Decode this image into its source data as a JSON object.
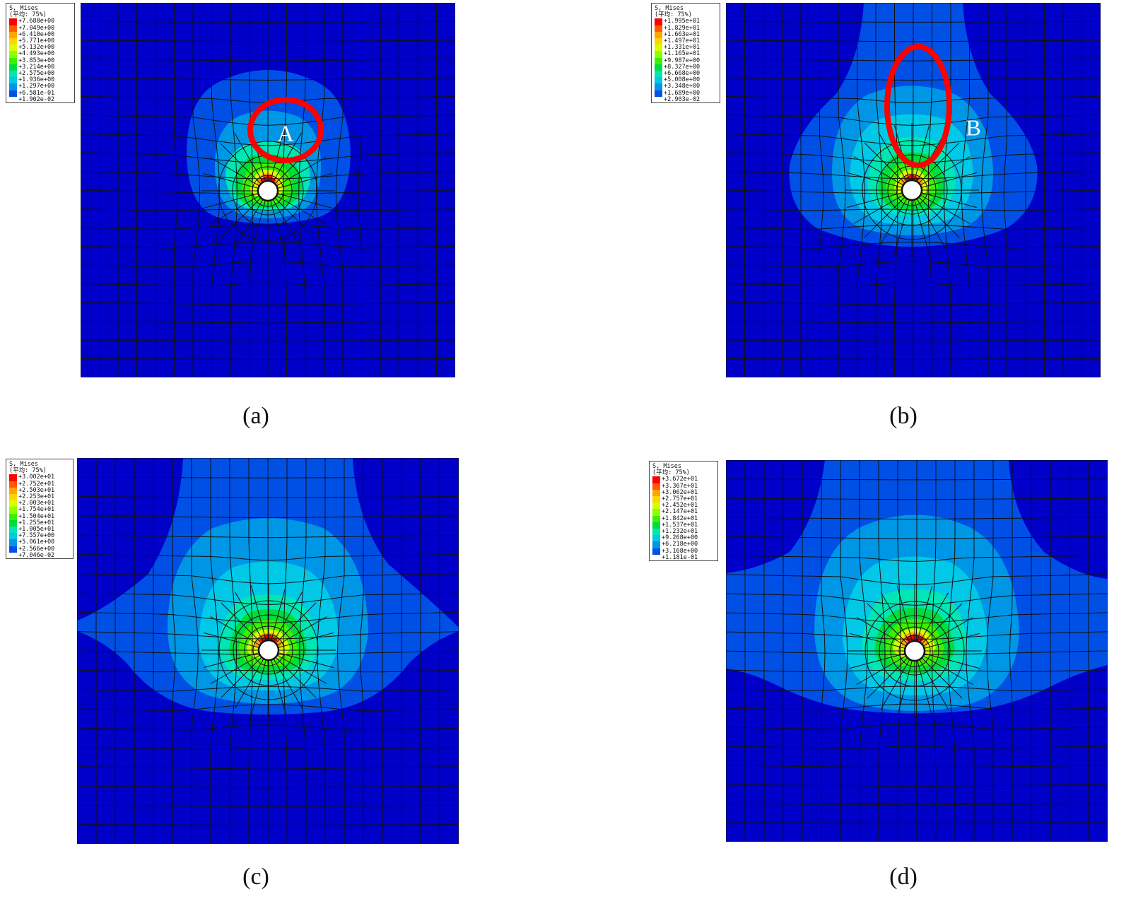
{
  "panels": [
    {
      "id": "a",
      "caption": "(a)",
      "legend": {
        "title": "S, Mises",
        "subtitle": "(平均: 75%)",
        "values": [
          "+7.688e+00",
          "+7.049e+00",
          "+6.410e+00",
          "+5.771e+00",
          "+5.132e+00",
          "+4.493e+00",
          "+3.853e+00",
          "+3.214e+00",
          "+2.575e+00",
          "+1.936e+00",
          "+1.297e+00",
          "+6.581e-01",
          "+1.902e-02"
        ]
      },
      "annotation": "A"
    },
    {
      "id": "b",
      "caption": "(b)",
      "legend": {
        "title": "S, Mises",
        "subtitle": "(平均: 75%)",
        "values": [
          "+1.995e+01",
          "+1.829e+01",
          "+1.663e+01",
          "+1.497e+01",
          "+1.331e+01",
          "+1.165e+01",
          "+9.987e+00",
          "+8.327e+00",
          "+6.668e+00",
          "+5.008e+00",
          "+3.348e+00",
          "+1.689e+00",
          "+2.903e-02"
        ]
      },
      "annotation": "B"
    },
    {
      "id": "c",
      "caption": "(c)",
      "legend": {
        "title": "S, Mises",
        "subtitle": "(平均: 75%)",
        "values": [
          "+3.002e+01",
          "+2.752e+01",
          "+2.503e+01",
          "+2.253e+01",
          "+2.003e+01",
          "+1.754e+01",
          "+1.504e+01",
          "+1.255e+01",
          "+1.005e+01",
          "+7.557e+00",
          "+5.061e+00",
          "+2.566e+00",
          "+7.046e-02"
        ]
      },
      "annotation": ""
    },
    {
      "id": "d",
      "caption": "(d)",
      "legend": {
        "title": "S, Mises",
        "subtitle": "(平均: 75%)",
        "values": [
          "+3.672e+01",
          "+3.367e+01",
          "+3.062e+01",
          "+2.757e+01",
          "+2.452e+01",
          "+2.147e+01",
          "+1.842e+01",
          "+1.537e+01",
          "+1.232e+01",
          "+9.268e+00",
          "+6.218e+00",
          "+3.168e+00",
          "+1.181e-01"
        ]
      },
      "annotation": ""
    }
  ],
  "contour_colors": [
    "#ff0000",
    "#ff5a00",
    "#ffa500",
    "#ffd400",
    "#d8ff00",
    "#8cff00",
    "#3df000",
    "#00dc3c",
    "#00e6b4",
    "#00c8e6",
    "#0096e6",
    "#0050e6",
    "#0000c8"
  ],
  "highlight_color": "#ff0000"
}
